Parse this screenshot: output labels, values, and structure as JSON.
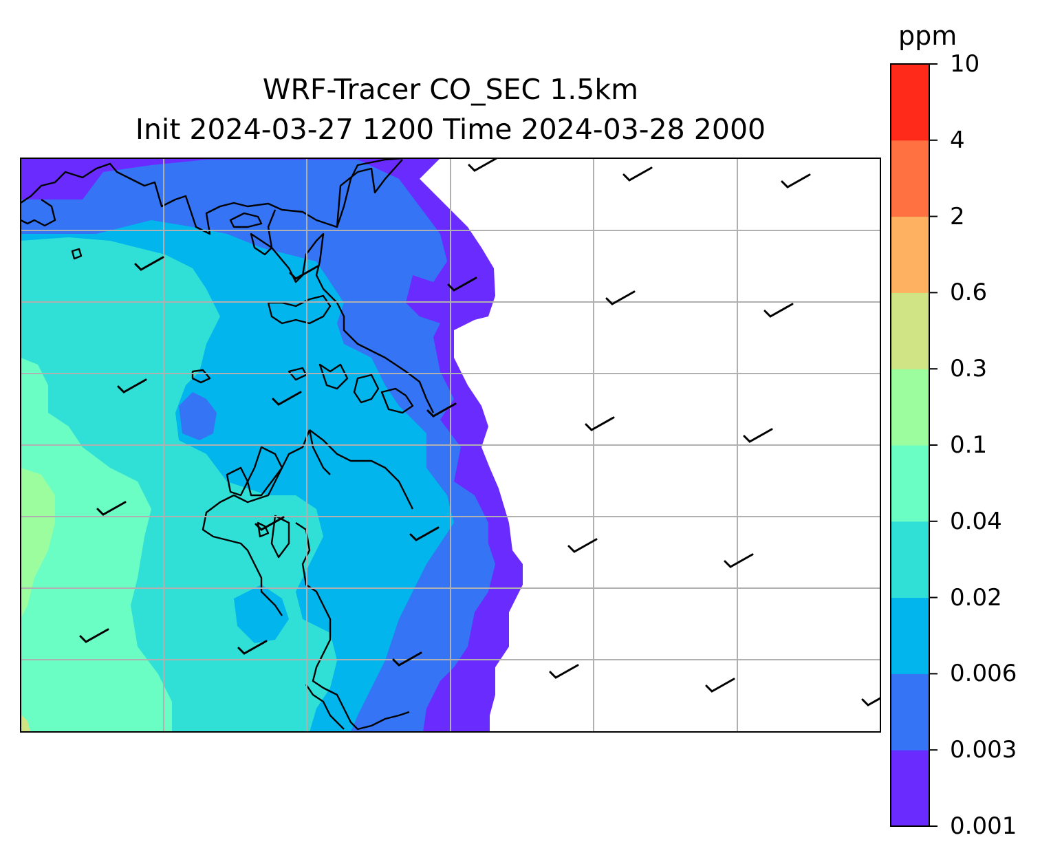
{
  "title": {
    "line1": "WRF-Tracer CO_SEC 1.5km",
    "line2": "Init 2024-03-27 1200 Time 2024-03-28 2000"
  },
  "colorbar": {
    "unit": "ppm",
    "ticks": [
      "0.001",
      "0.003",
      "0.006",
      "0.02",
      "0.04",
      "0.1",
      "0.3",
      "0.6",
      "2",
      "4",
      "10"
    ],
    "colors": [
      "#6a2bff",
      "#3574f5",
      "#02b5ec",
      "#30e0d6",
      "#6afec4",
      "#9cfd9e",
      "#d0e385",
      "#ffb162",
      "#ff7140",
      "#ff2a19"
    ]
  },
  "map": {
    "gridlines": "on",
    "gridline_color": "#b0b0b0",
    "coastline_color": "#000000",
    "wind_barbs": "on"
  }
}
